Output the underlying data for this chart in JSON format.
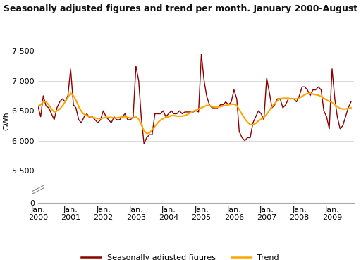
{
  "title": "Seasonally adjusted figures and trend per month. January 2000-August 2009. GWh",
  "ylabel": "GWh",
  "seasonally_adjusted_color": "#8B0000",
  "trend_color": "#FFA500",
  "background_color": "#ffffff",
  "seasonally_adjusted": [
    6580,
    6400,
    6750,
    6580,
    6550,
    6450,
    6350,
    6550,
    6650,
    6700,
    6650,
    6750,
    7200,
    6600,
    6550,
    6350,
    6300,
    6400,
    6450,
    6380,
    6400,
    6350,
    6300,
    6350,
    6500,
    6400,
    6350,
    6300,
    6400,
    6350,
    6350,
    6400,
    6450,
    6350,
    6350,
    6400,
    7250,
    7000,
    6400,
    5950,
    6050,
    6100,
    6100,
    6450,
    6450,
    6450,
    6500,
    6400,
    6450,
    6500,
    6450,
    6450,
    6500,
    6450,
    6480,
    6480,
    6480,
    6480,
    6500,
    6480,
    7450,
    7000,
    6750,
    6600,
    6550,
    6550,
    6550,
    6600,
    6600,
    6650,
    6600,
    6650,
    6850,
    6700,
    6150,
    6050,
    6000,
    6050,
    6050,
    6300,
    6400,
    6500,
    6450,
    6350,
    7050,
    6800,
    6550,
    6600,
    6700,
    6700,
    6550,
    6600,
    6700,
    6700,
    6700,
    6650,
    6750,
    6900,
    6900,
    6850,
    6750,
    6850,
    6850,
    6900,
    6850,
    6500,
    6400,
    6200,
    7200,
    6700,
    6400,
    6200,
    6250,
    6400,
    6550,
    6650
  ],
  "trend": [
    6580,
    6600,
    6650,
    6650,
    6600,
    6530,
    6480,
    6500,
    6530,
    6580,
    6650,
    6720,
    6800,
    6750,
    6680,
    6570,
    6490,
    6440,
    6420,
    6400,
    6390,
    6380,
    6370,
    6370,
    6380,
    6390,
    6390,
    6390,
    6380,
    6380,
    6390,
    6400,
    6400,
    6390,
    6380,
    6380,
    6400,
    6360,
    6270,
    6170,
    6120,
    6130,
    6180,
    6240,
    6300,
    6340,
    6370,
    6390,
    6400,
    6420,
    6420,
    6410,
    6410,
    6410,
    6420,
    6440,
    6470,
    6490,
    6510,
    6530,
    6550,
    6570,
    6590,
    6590,
    6570,
    6560,
    6560,
    6570,
    6580,
    6590,
    6600,
    6610,
    6610,
    6590,
    6520,
    6440,
    6370,
    6310,
    6270,
    6270,
    6290,
    6330,
    6360,
    6390,
    6440,
    6510,
    6570,
    6620,
    6670,
    6700,
    6710,
    6710,
    6710,
    6700,
    6700,
    6700,
    6710,
    6740,
    6770,
    6790,
    6790,
    6780,
    6770,
    6760,
    6740,
    6710,
    6680,
    6660,
    6640,
    6600,
    6570,
    6540,
    6530,
    6530,
    6540,
    6550
  ],
  "n_months": 116,
  "start_year": 2000,
  "yticks_data": [
    5500,
    6000,
    6500,
    7000,
    7500
  ],
  "ytick_labels_data": [
    "5 500",
    "6 000",
    "6 500",
    "7 000",
    "7 500"
  ],
  "y0_label": "0",
  "ylim_data": [
    5400,
    7700
  ],
  "title_fontsize": 9
}
